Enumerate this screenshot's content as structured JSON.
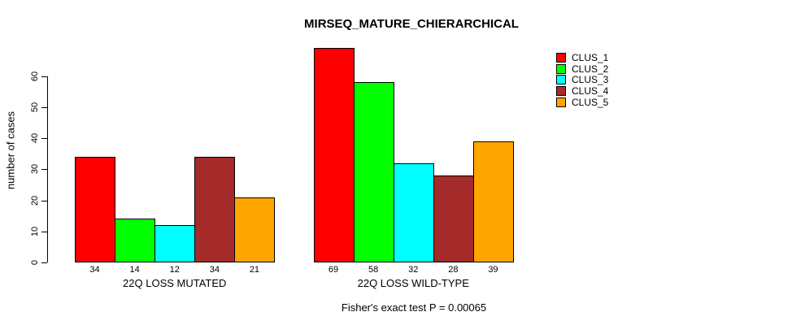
{
  "title": "MIRSEQ_MATURE_CHIERARCHICAL",
  "y_axis_label": "number of cases",
  "caption": "Fisher's exact test P = 0.00065",
  "chart_data": {
    "type": "bar",
    "title": "MIRSEQ_MATURE_CHIERARCHICAL",
    "xlabel": "",
    "ylabel": "number of cases",
    "categories": [
      "22Q LOSS MUTATED",
      "22Q LOSS WILD-TYPE"
    ],
    "series": [
      {
        "name": "CLUS_1",
        "color": "#FF0000",
        "values": [
          34,
          69
        ]
      },
      {
        "name": "CLUS_2",
        "color": "#00FF00",
        "values": [
          14,
          58
        ]
      },
      {
        "name": "CLUS_3",
        "color": "#00FFFF",
        "values": [
          12,
          32
        ]
      },
      {
        "name": "CLUS_4",
        "color": "#A52A2A",
        "values": [
          34,
          28
        ]
      },
      {
        "name": "CLUS_5",
        "color": "#FFA500",
        "values": [
          21,
          39
        ]
      }
    ],
    "yticks": [
      0,
      10,
      20,
      30,
      40,
      50,
      60
    ],
    "ylim": [
      0,
      60
    ],
    "grid": false,
    "legend_position": "right",
    "bar_value_labels_shown": true,
    "annotation": "Fisher's exact test P = 0.00065"
  }
}
